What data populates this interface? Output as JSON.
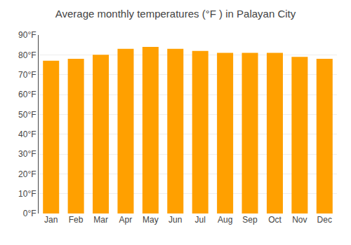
{
  "chart_data": {
    "type": "bar",
    "title": "Average monthly temperatures (°F ) in Palayan City",
    "categories": [
      "Jan",
      "Feb",
      "Mar",
      "Apr",
      "May",
      "Jun",
      "Jul",
      "Aug",
      "Sep",
      "Oct",
      "Nov",
      "Dec"
    ],
    "values": [
      77,
      78,
      80,
      83,
      84,
      83,
      82,
      81,
      81,
      81,
      79,
      78
    ],
    "color": "#FFA000",
    "ylim": [
      0,
      90
    ],
    "yticks": [
      {
        "value": 0,
        "label": "0°F"
      },
      {
        "value": 10,
        "label": "10°F"
      },
      {
        "value": 20,
        "label": "20°F"
      },
      {
        "value": 30,
        "label": "30°F"
      },
      {
        "value": 40,
        "label": "40°F"
      },
      {
        "value": 50,
        "label": "50°F"
      },
      {
        "value": 60,
        "label": "60°F"
      },
      {
        "value": 70,
        "label": "70°F"
      },
      {
        "value": 80,
        "label": "80°F"
      },
      {
        "value": 90,
        "label": "90°F"
      }
    ],
    "grid": true
  }
}
